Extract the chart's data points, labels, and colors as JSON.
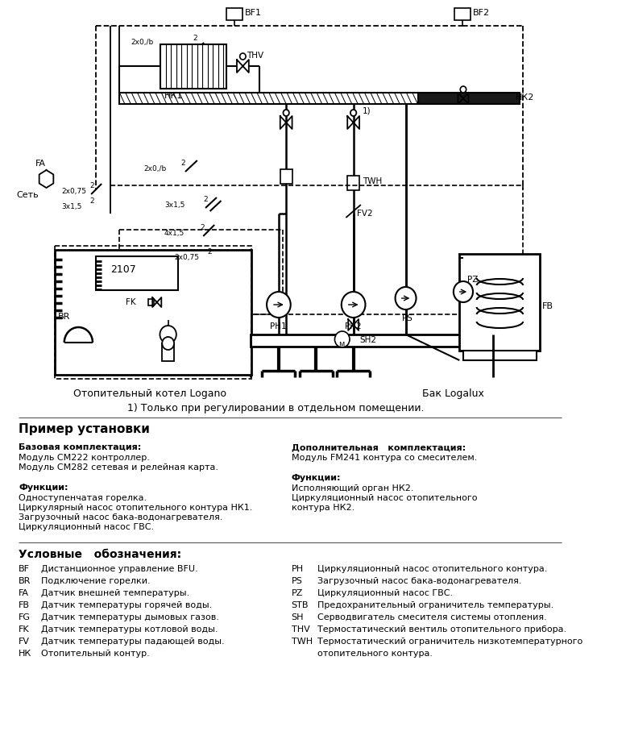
{
  "bg_color": "#ffffff",
  "label_note": "1) Только при регулировании в отдельном помещении.",
  "section_title": "Пример установки",
  "base_title": "Базовая комплектация:",
  "base_lines": [
    "Модуль СМ222 контроллер.",
    "Модуль СМ282 сетевая и релейная карта."
  ],
  "func_title_left": "Функции:",
  "func_lines_left": [
    "Одноступенчатая горелка.",
    "Циркулярный насос отопительного контура НК1.",
    "Загрузочный насос бака-водонагревателя.",
    "Циркуляционный насос ГВС."
  ],
  "add_title": "Дополнительная   комплектация:",
  "add_lines": [
    "Модуль FM241 контура со смесителем."
  ],
  "func_title_right": "Функции:",
  "func_lines_right": [
    "Исполняющий орган НК2.",
    "Циркуляционный насос отопительного",
    "контура НК2."
  ],
  "legend_title": "Условные   обозначения:",
  "legend_left": [
    [
      "BF",
      "Дистанционное управление BFU."
    ],
    [
      "BR",
      "Подключение горелки."
    ],
    [
      "FA",
      "Датчик внешней температуры."
    ],
    [
      "FB",
      "Датчик температуры горячей воды."
    ],
    [
      "FG",
      "Датчик температуры дымовых газов."
    ],
    [
      "FK",
      "Датчик температуры котловой воды."
    ],
    [
      "FV",
      "Датчик температуры падающей воды."
    ],
    [
      "НК",
      "Отопительный контур."
    ]
  ],
  "legend_right": [
    [
      "PH",
      "Циркуляционный насос отопительного контура."
    ],
    [
      "PS",
      "Загрузочный насос бака-водонагревателя."
    ],
    [
      "PZ",
      "Циркуляционный насос ГВС."
    ],
    [
      "STB",
      "Предохранительный ограничитель температуры."
    ],
    [
      "SH",
      "Серводвигатель смесителя системы отопления."
    ],
    [
      "THV",
      "Термостатический вентиль отопительного прибора."
    ],
    [
      "TWH",
      "Термостатический ограничитель низкотемпературного"
    ],
    [
      "",
      "отопительного контура."
    ]
  ],
  "boiler_label": "Отопительный котел Logano",
  "tank_label": "Бак Logalux"
}
